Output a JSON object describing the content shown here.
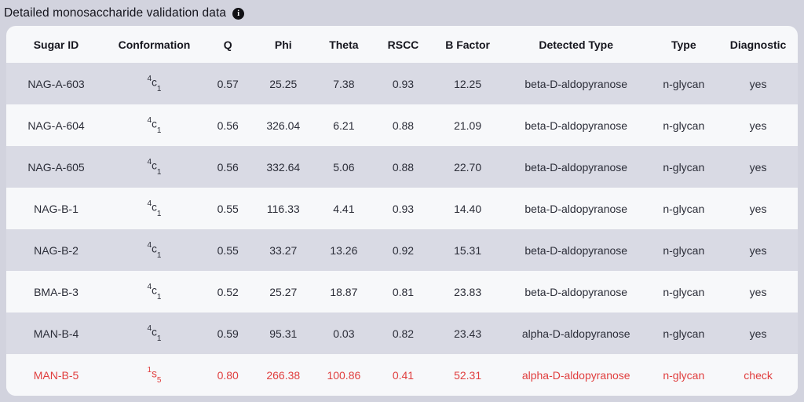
{
  "page": {
    "title": "Detailed monosaccharide validation data",
    "info_icon_glyph": "i"
  },
  "colors": {
    "page_bg": "#d2d3de",
    "card_bg": "#f7f8fa",
    "row_alt_bg": "#d9dae4",
    "text": "#2b2d38",
    "title": "#14141c",
    "alert": "#e03e3e",
    "icon_bg": "#111115",
    "icon_fg": "#ffffff"
  },
  "table": {
    "columns": [
      "Sugar ID",
      "Conformation",
      "Q",
      "Phi",
      "Theta",
      "RSCC",
      "B Factor",
      "Detected Type",
      "Type",
      "Diagnostic"
    ],
    "rows": [
      {
        "sugar_id": "NAG-A-603",
        "conf_sup": "4",
        "conf_base": "c",
        "conf_sub": "1",
        "q": "0.57",
        "phi": "25.25",
        "theta": "7.38",
        "rscc": "0.93",
        "b_factor": "12.25",
        "detected_type": "beta-D-aldopyranose",
        "type": "n-glycan",
        "diagnostic": "yes",
        "status": "ok"
      },
      {
        "sugar_id": "NAG-A-604",
        "conf_sup": "4",
        "conf_base": "c",
        "conf_sub": "1",
        "q": "0.56",
        "phi": "326.04",
        "theta": "6.21",
        "rscc": "0.88",
        "b_factor": "21.09",
        "detected_type": "beta-D-aldopyranose",
        "type": "n-glycan",
        "diagnostic": "yes",
        "status": "ok"
      },
      {
        "sugar_id": "NAG-A-605",
        "conf_sup": "4",
        "conf_base": "c",
        "conf_sub": "1",
        "q": "0.56",
        "phi": "332.64",
        "theta": "5.06",
        "rscc": "0.88",
        "b_factor": "22.70",
        "detected_type": "beta-D-aldopyranose",
        "type": "n-glycan",
        "diagnostic": "yes",
        "status": "ok"
      },
      {
        "sugar_id": "NAG-B-1",
        "conf_sup": "4",
        "conf_base": "c",
        "conf_sub": "1",
        "q": "0.55",
        "phi": "116.33",
        "theta": "4.41",
        "rscc": "0.93",
        "b_factor": "14.40",
        "detected_type": "beta-D-aldopyranose",
        "type": "n-glycan",
        "diagnostic": "yes",
        "status": "ok"
      },
      {
        "sugar_id": "NAG-B-2",
        "conf_sup": "4",
        "conf_base": "c",
        "conf_sub": "1",
        "q": "0.55",
        "phi": "33.27",
        "theta": "13.26",
        "rscc": "0.92",
        "b_factor": "15.31",
        "detected_type": "beta-D-aldopyranose",
        "type": "n-glycan",
        "diagnostic": "yes",
        "status": "ok"
      },
      {
        "sugar_id": "BMA-B-3",
        "conf_sup": "4",
        "conf_base": "c",
        "conf_sub": "1",
        "q": "0.52",
        "phi": "25.27",
        "theta": "18.87",
        "rscc": "0.81",
        "b_factor": "23.83",
        "detected_type": "beta-D-aldopyranose",
        "type": "n-glycan",
        "diagnostic": "yes",
        "status": "ok"
      },
      {
        "sugar_id": "MAN-B-4",
        "conf_sup": "4",
        "conf_base": "c",
        "conf_sub": "1",
        "q": "0.59",
        "phi": "95.31",
        "theta": "0.03",
        "rscc": "0.82",
        "b_factor": "23.43",
        "detected_type": "alpha-D-aldopyranose",
        "type": "n-glycan",
        "diagnostic": "yes",
        "status": "ok"
      },
      {
        "sugar_id": "MAN-B-5",
        "conf_sup": "1",
        "conf_base": "s",
        "conf_sub": "5",
        "q": "0.80",
        "phi": "266.38",
        "theta": "100.86",
        "rscc": "0.41",
        "b_factor": "52.31",
        "detected_type": "alpha-D-aldopyranose",
        "type": "n-glycan",
        "diagnostic": "check",
        "status": "alert"
      }
    ]
  }
}
